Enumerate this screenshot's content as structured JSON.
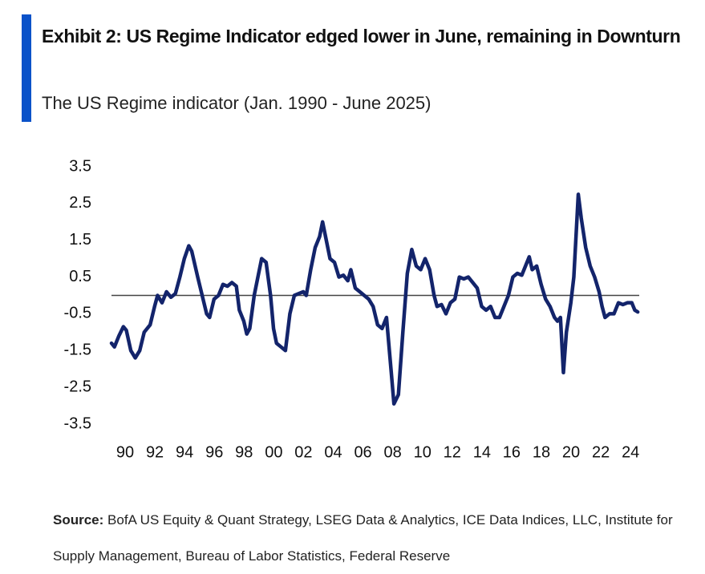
{
  "chart_data": {
    "type": "line",
    "title": "Exhibit 2: US Regime Indicator edged lower in June, remaining in Downturn",
    "subtitle": "The US Regime indicator (Jan. 1990 - June 2025)",
    "source_label": "Source:",
    "source": "BofA US Equity & Quant Strategy, LSEG Data & Analytics, ICE Data Indices, LLC, Institute for Supply Management, Bureau of Labor Statistics, Federal Reserve",
    "xlim": [
      1990,
      2025.5
    ],
    "xticks": [
      {
        "value": 1990,
        "label": "90"
      },
      {
        "value": 1992,
        "label": "92"
      },
      {
        "value": 1994,
        "label": "94"
      },
      {
        "value": 1996,
        "label": "96"
      },
      {
        "value": 1998,
        "label": "98"
      },
      {
        "value": 2000,
        "label": "00"
      },
      {
        "value": 2002,
        "label": "02"
      },
      {
        "value": 2004,
        "label": "04"
      },
      {
        "value": 2006,
        "label": "06"
      },
      {
        "value": 2008,
        "label": "08"
      },
      {
        "value": 2010,
        "label": "10"
      },
      {
        "value": 2012,
        "label": "12"
      },
      {
        "value": 2014,
        "label": "14"
      },
      {
        "value": 2016,
        "label": "16"
      },
      {
        "value": 2018,
        "label": "18"
      },
      {
        "value": 2020,
        "label": "20"
      },
      {
        "value": 2022,
        "label": "22"
      },
      {
        "value": 2024,
        "label": "24"
      }
    ],
    "ylim": [
      -3.5,
      3.5
    ],
    "yticks": [
      3.5,
      2.5,
      1.5,
      0.5,
      -0.5,
      -1.5,
      -2.5,
      -3.5
    ],
    "x": [
      1990.0,
      1990.2,
      1990.5,
      1990.8,
      1991.0,
      1991.3,
      1991.6,
      1991.9,
      1992.2,
      1992.6,
      1992.9,
      1993.1,
      1993.4,
      1993.7,
      1994.0,
      1994.3,
      1994.6,
      1994.9,
      1995.2,
      1995.4,
      1995.8,
      1996.1,
      1996.4,
      1996.6,
      1996.9,
      1997.2,
      1997.5,
      1997.8,
      1998.1,
      1998.4,
      1998.6,
      1998.9,
      1999.1,
      1999.3,
      1999.6,
      1999.9,
      2000.1,
      2000.4,
      2000.7,
      2000.9,
      2001.1,
      2001.4,
      2001.7,
      2002.0,
      2002.3,
      2002.6,
      2002.9,
      2003.1,
      2003.4,
      2003.7,
      2004.0,
      2004.2,
      2004.4,
      2004.7,
      2005.0,
      2005.3,
      2005.6,
      2005.9,
      2006.1,
      2006.4,
      2006.7,
      2007.0,
      2007.3,
      2007.6,
      2007.9,
      2008.2,
      2008.5,
      2008.8,
      2009.0,
      2009.3,
      2009.6,
      2009.9,
      2010.2,
      2010.5,
      2010.8,
      2011.1,
      2011.4,
      2011.7,
      2011.9,
      2012.2,
      2012.5,
      2012.8,
      2013.1,
      2013.4,
      2013.7,
      2014.0,
      2014.3,
      2014.6,
      2014.9,
      2015.2,
      2015.5,
      2015.8,
      2016.1,
      2016.4,
      2016.7,
      2017.0,
      2017.3,
      2017.6,
      2017.9,
      2018.1,
      2018.3,
      2018.6,
      2018.9,
      2019.2,
      2019.5,
      2019.8,
      2020.0,
      2020.2,
      2020.4,
      2020.6,
      2020.9,
      2021.1,
      2021.4,
      2021.6,
      2021.9,
      2022.2,
      2022.5,
      2022.8,
      2023.0,
      2023.2,
      2023.5,
      2023.8,
      2024.1,
      2024.4,
      2024.7,
      2025.0,
      2025.2,
      2025.4
    ],
    "series": [
      {
        "name": "US Regime Indicator",
        "color": "#13246b",
        "values": [
          -1.3,
          -1.4,
          -1.1,
          -0.85,
          -0.95,
          -1.5,
          -1.7,
          -1.5,
          -1.0,
          -0.8,
          -0.3,
          0.0,
          -0.2,
          0.1,
          -0.05,
          0.05,
          0.5,
          1.0,
          1.35,
          1.2,
          0.5,
          0.0,
          -0.5,
          -0.6,
          -0.1,
          0.0,
          0.3,
          0.25,
          0.35,
          0.25,
          -0.4,
          -0.7,
          -1.05,
          -0.9,
          0.0,
          0.6,
          1.0,
          0.9,
          0.0,
          -0.9,
          -1.3,
          -1.4,
          -1.5,
          -0.5,
          0.0,
          0.05,
          0.1,
          0.0,
          0.7,
          1.3,
          1.6,
          2.0,
          1.6,
          1.0,
          0.9,
          0.5,
          0.55,
          0.4,
          0.7,
          0.2,
          0.1,
          0.0,
          -0.1,
          -0.3,
          -0.8,
          -0.9,
          -0.6,
          -2.0,
          -2.95,
          -2.7,
          -1.0,
          0.6,
          1.25,
          0.8,
          0.7,
          1.0,
          0.7,
          0.0,
          -0.3,
          -0.25,
          -0.5,
          -0.2,
          -0.1,
          0.5,
          0.45,
          0.5,
          0.35,
          0.2,
          -0.3,
          -0.4,
          -0.3,
          -0.6,
          -0.6,
          -0.3,
          0.0,
          0.5,
          0.6,
          0.55,
          0.85,
          1.05,
          0.7,
          0.8,
          0.3,
          -0.1,
          -0.3,
          -0.6,
          -0.7,
          -0.6,
          -2.1,
          -1.0,
          -0.2,
          0.5,
          2.75,
          2.1,
          1.3,
          0.8,
          0.5,
          0.1,
          -0.3,
          -0.6,
          -0.5,
          -0.5,
          -0.2,
          -0.25,
          -0.2,
          -0.2,
          -0.4,
          -0.45
        ]
      }
    ]
  }
}
